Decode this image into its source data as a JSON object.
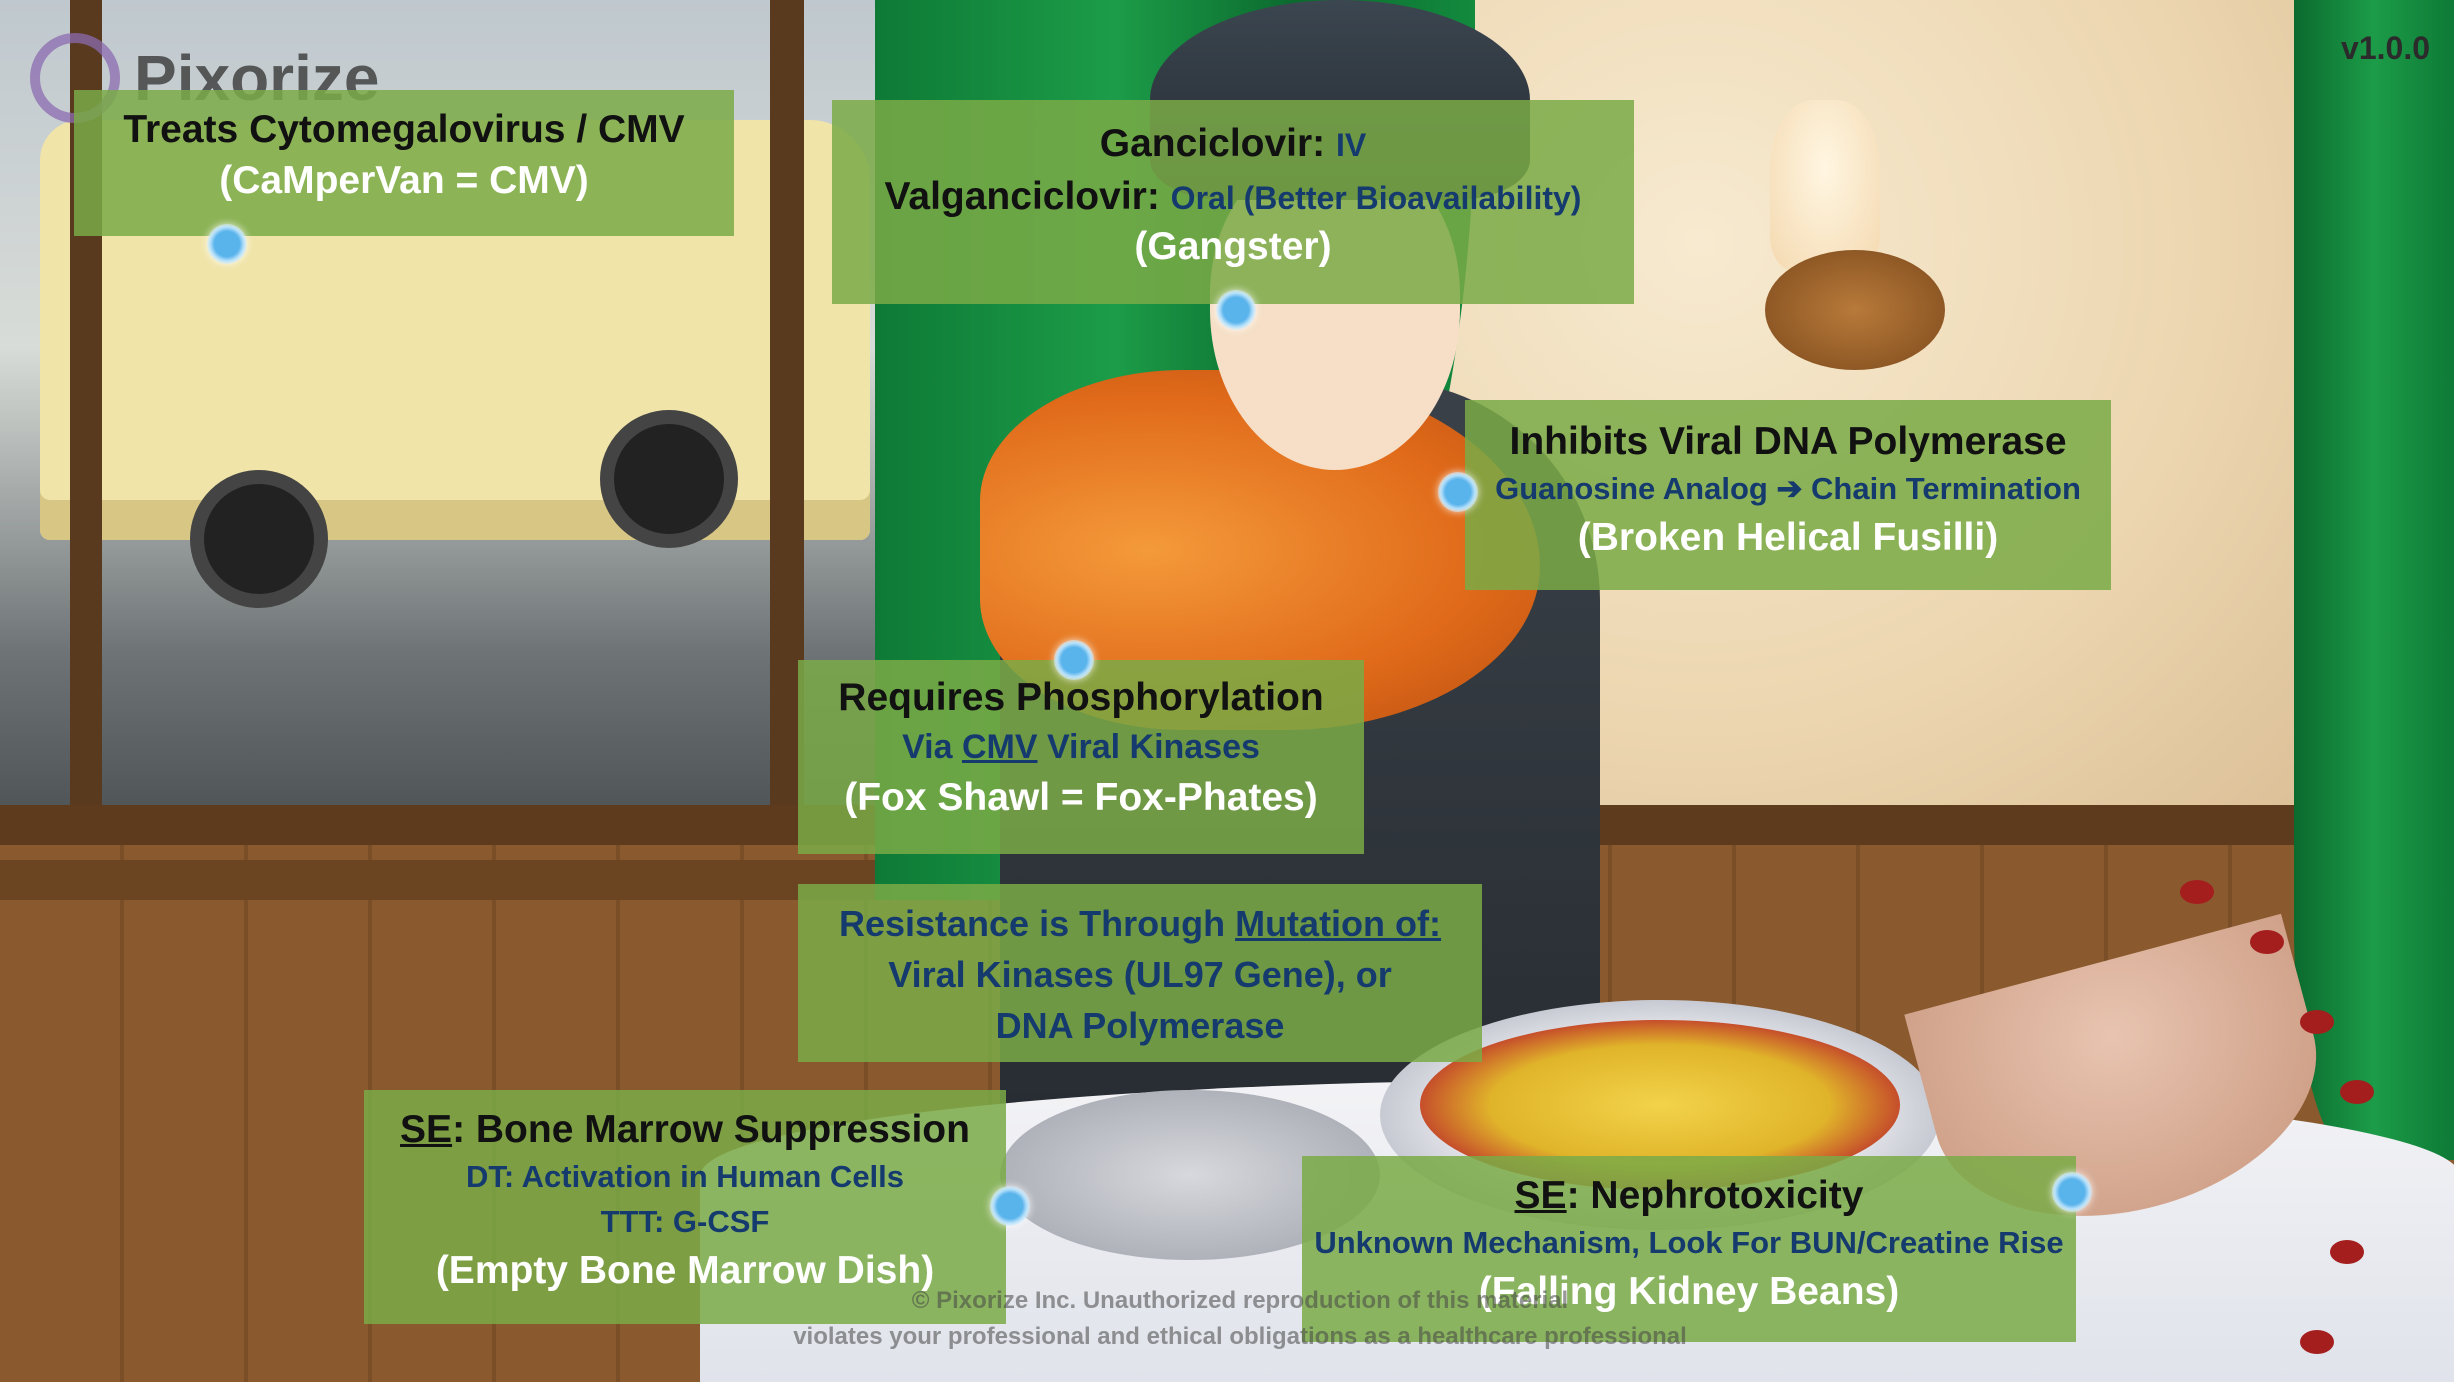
{
  "app": {
    "logo_text": "Pixorize",
    "version": "v1.0.0"
  },
  "boxes": {
    "cmv": {
      "line1": "Treats Cytomegalovirus / CMV",
      "line2": "(CaMperVan = CMV)"
    },
    "admin": {
      "ganciclovir_label": "Ganciclovir:",
      "ganciclovir_route": "IV",
      "valganciclovir_label": "Valganciclovir:",
      "valganciclovir_route": "Oral (Better Bioavailability)",
      "mnemonic": "(Gangster)"
    },
    "mechanism": {
      "title": "Inhibits Viral DNA Polymerase",
      "detail_start": "Guanosine Analog",
      "detail_arrow": "➔",
      "detail_end": "Chain Termination",
      "mnemonic": "(Broken Helical Fusilli)"
    },
    "phosphorylation": {
      "title": "Requires Phosphorylation",
      "via": "Via",
      "cmv": "CMV",
      "kinases": "Viral Kinases",
      "mnemonic": "(Fox Shawl = Fox-Phates)"
    },
    "resistance": {
      "prefix": "Resistance is Through",
      "mutation": "Mutation of:",
      "line2": "Viral Kinases (UL97 Gene), or",
      "line3": "DNA Polymerase"
    },
    "bone_marrow": {
      "se": "SE",
      "title": ": Bone Marrow Suppression",
      "dt": "DT: Activation in Human Cells",
      "ttt": "TTT: G-CSF",
      "mnemonic": "(Empty Bone Marrow Dish)"
    },
    "nephro": {
      "se": "SE",
      "title": ": Nephrotoxicity",
      "detail": "Unknown Mechanism, Look For BUN/Creatine Rise",
      "mnemonic": "(Falling Kidney Beans)"
    }
  },
  "watermark": {
    "line1": "© Pixorize Inc. Unauthorized reproduction of this material",
    "line2": "violates your professional and ethical obligations as a healthcare professional"
  },
  "colors": {
    "box_green": "#7aaa46",
    "text_blue": "#143a6e",
    "hotspot_blue": "#5ab4ec",
    "curtain_green": "#138a3e"
  }
}
